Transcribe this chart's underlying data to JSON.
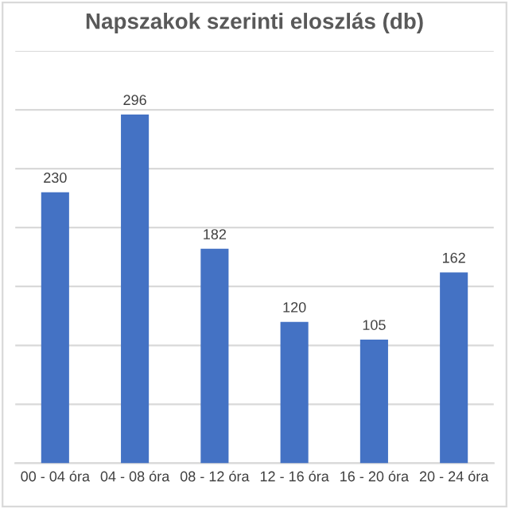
{
  "chart_data": {
    "type": "bar",
    "title": "Napszakok szerinti eloszlás (db)",
    "categories": [
      "00 - 04 óra",
      "04 - 08 óra",
      "08 - 12 óra",
      "12 - 16 óra",
      "16 - 20 óra",
      "20 - 24 óra"
    ],
    "values": [
      230,
      296,
      182,
      120,
      105,
      162
    ],
    "color": "#4472c4",
    "data_labels": true,
    "grid": "y",
    "ylim": [
      0,
      350
    ],
    "yticks": [
      {
        "value": 0,
        "label": null
      },
      {
        "value": 50,
        "label": null
      },
      {
        "value": 100,
        "label": null
      },
      {
        "value": 150,
        "label": null
      },
      {
        "value": 200,
        "label": null
      },
      {
        "value": 250,
        "label": null
      },
      {
        "value": 300,
        "label": null
      },
      {
        "value": 350,
        "label": null
      }
    ],
    "tick_labels": "x",
    "legend": false
  }
}
